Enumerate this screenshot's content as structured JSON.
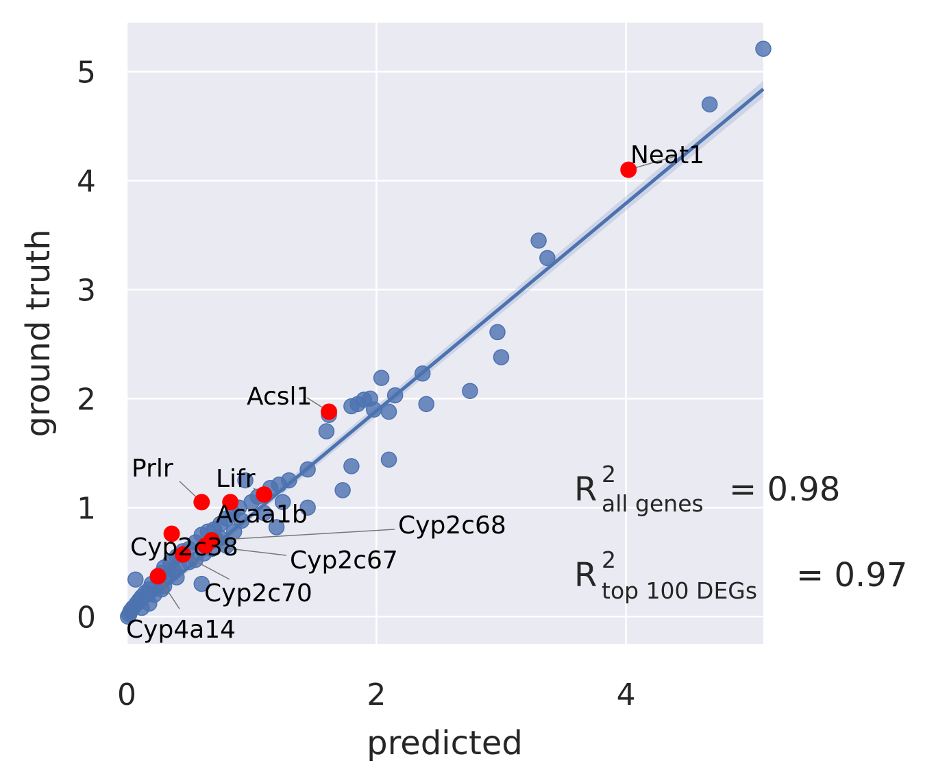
{
  "chart_data": {
    "type": "scatter",
    "xlabel": "predicted",
    "ylabel": "ground truth",
    "xlim": [
      0,
      5.1
    ],
    "ylim": [
      -0.25,
      5.45
    ],
    "xticks": [
      "0",
      "2",
      "4"
    ],
    "xtick_values": [
      0,
      2,
      4
    ],
    "yticks": [
      "0",
      "1",
      "2",
      "3",
      "4",
      "5"
    ],
    "ytick_values": [
      0,
      1,
      2,
      3,
      4,
      5
    ],
    "grid": true,
    "colors": {
      "background": "#eaeaf2",
      "points": "#4c72b0",
      "highlight": "#ff0000",
      "grid": "#ffffff",
      "text": "#262626"
    },
    "regression_line": {
      "x": [
        0,
        5.1
      ],
      "y": [
        -0.02,
        4.84
      ]
    },
    "points": [
      [
        5.1,
        5.21
      ],
      [
        4.67,
        4.7
      ],
      [
        3.3,
        3.45
      ],
      [
        3.37,
        3.29
      ],
      [
        2.97,
        2.61
      ],
      [
        3.0,
        2.38
      ],
      [
        2.75,
        2.07
      ],
      [
        2.4,
        1.95
      ],
      [
        2.37,
        2.23
      ],
      [
        2.04,
        2.19
      ],
      [
        2.15,
        2.03
      ],
      [
        1.95,
        2.0
      ],
      [
        1.9,
        1.99
      ],
      [
        1.85,
        1.95
      ],
      [
        2.1,
        1.88
      ],
      [
        1.98,
        1.9
      ],
      [
        1.8,
        1.93
      ],
      [
        1.62,
        1.85
      ],
      [
        1.6,
        1.7
      ],
      [
        2.1,
        1.44
      ],
      [
        1.8,
        1.38
      ],
      [
        1.73,
        1.16
      ],
      [
        1.45,
        1.35
      ],
      [
        1.3,
        1.25
      ],
      [
        1.22,
        1.21
      ],
      [
        1.15,
        1.18
      ],
      [
        1.45,
        1.0
      ],
      [
        1.2,
        0.82
      ],
      [
        1.05,
        1.1
      ],
      [
        1.0,
        1.05
      ],
      [
        0.95,
        1.25
      ],
      [
        0.9,
        1.0
      ],
      [
        0.85,
        0.95
      ],
      [
        0.8,
        0.9
      ],
      [
        0.75,
        0.85
      ],
      [
        0.7,
        0.8
      ],
      [
        0.65,
        0.78
      ],
      [
        0.6,
        0.75
      ],
      [
        0.55,
        0.68
      ],
      [
        0.5,
        0.62
      ],
      [
        0.45,
        0.6
      ],
      [
        0.4,
        0.55
      ],
      [
        0.35,
        0.5
      ],
      [
        0.3,
        0.45
      ],
      [
        0.28,
        0.4
      ],
      [
        0.25,
        0.35
      ],
      [
        0.2,
        0.3
      ],
      [
        0.18,
        0.25
      ],
      [
        0.15,
        0.22
      ],
      [
        0.12,
        0.18
      ],
      [
        0.1,
        0.15
      ],
      [
        0.08,
        0.12
      ],
      [
        0.05,
        0.08
      ],
      [
        0.03,
        0.05
      ],
      [
        0.02,
        0.02
      ],
      [
        0.01,
        0.0
      ],
      [
        0.07,
        0.34
      ],
      [
        0.6,
        0.3
      ],
      [
        0.8,
        0.65
      ],
      [
        0.75,
        0.72
      ],
      [
        0.68,
        0.62
      ],
      [
        0.55,
        0.52
      ],
      [
        0.42,
        0.48
      ],
      [
        0.33,
        0.38
      ],
      [
        0.22,
        0.2
      ],
      [
        0.18,
        0.12
      ],
      [
        0.12,
        0.08
      ],
      [
        0.3,
        0.28
      ],
      [
        0.38,
        0.42
      ],
      [
        0.5,
        0.5
      ],
      [
        1.1,
        0.95
      ],
      [
        1.25,
        1.05
      ],
      [
        0.92,
        0.88
      ],
      [
        0.86,
        0.78
      ],
      [
        0.72,
        0.7
      ],
      [
        0.62,
        0.58
      ],
      [
        0.4,
        0.36
      ],
      [
        0.28,
        0.25
      ]
    ],
    "highlighted": [
      {
        "x": 4.02,
        "y": 4.1,
        "name": "Neat1"
      },
      {
        "x": 1.62,
        "y": 1.88,
        "name": "Acsl1"
      },
      {
        "x": 0.6,
        "y": 1.05,
        "name": "Prlr"
      },
      {
        "x": 1.1,
        "y": 1.12,
        "name": "Lifr"
      },
      {
        "x": 0.83,
        "y": 1.05,
        "name": "Acaa1b"
      },
      {
        "x": 0.68,
        "y": 0.7,
        "name": "Cyp2c68"
      },
      {
        "x": 0.63,
        "y": 0.65,
        "name": "Cyp2c67"
      },
      {
        "x": 0.36,
        "y": 0.76,
        "name": "Cyp2c38"
      },
      {
        "x": 0.45,
        "y": 0.57,
        "name": "Cyp2c70"
      },
      {
        "x": 0.25,
        "y": 0.37,
        "name": "Cyp4a14"
      }
    ],
    "annotations": {
      "r2_all_sym": "R",
      "r2_all_sup": "2",
      "r2_all_sub": "all genes",
      "r2_all_val": "= 0.98",
      "r2_top_sym": "R",
      "r2_top_sup": "2",
      "r2_top_sub": "top 100 DEGs",
      "r2_top_val": "= 0.97"
    }
  }
}
